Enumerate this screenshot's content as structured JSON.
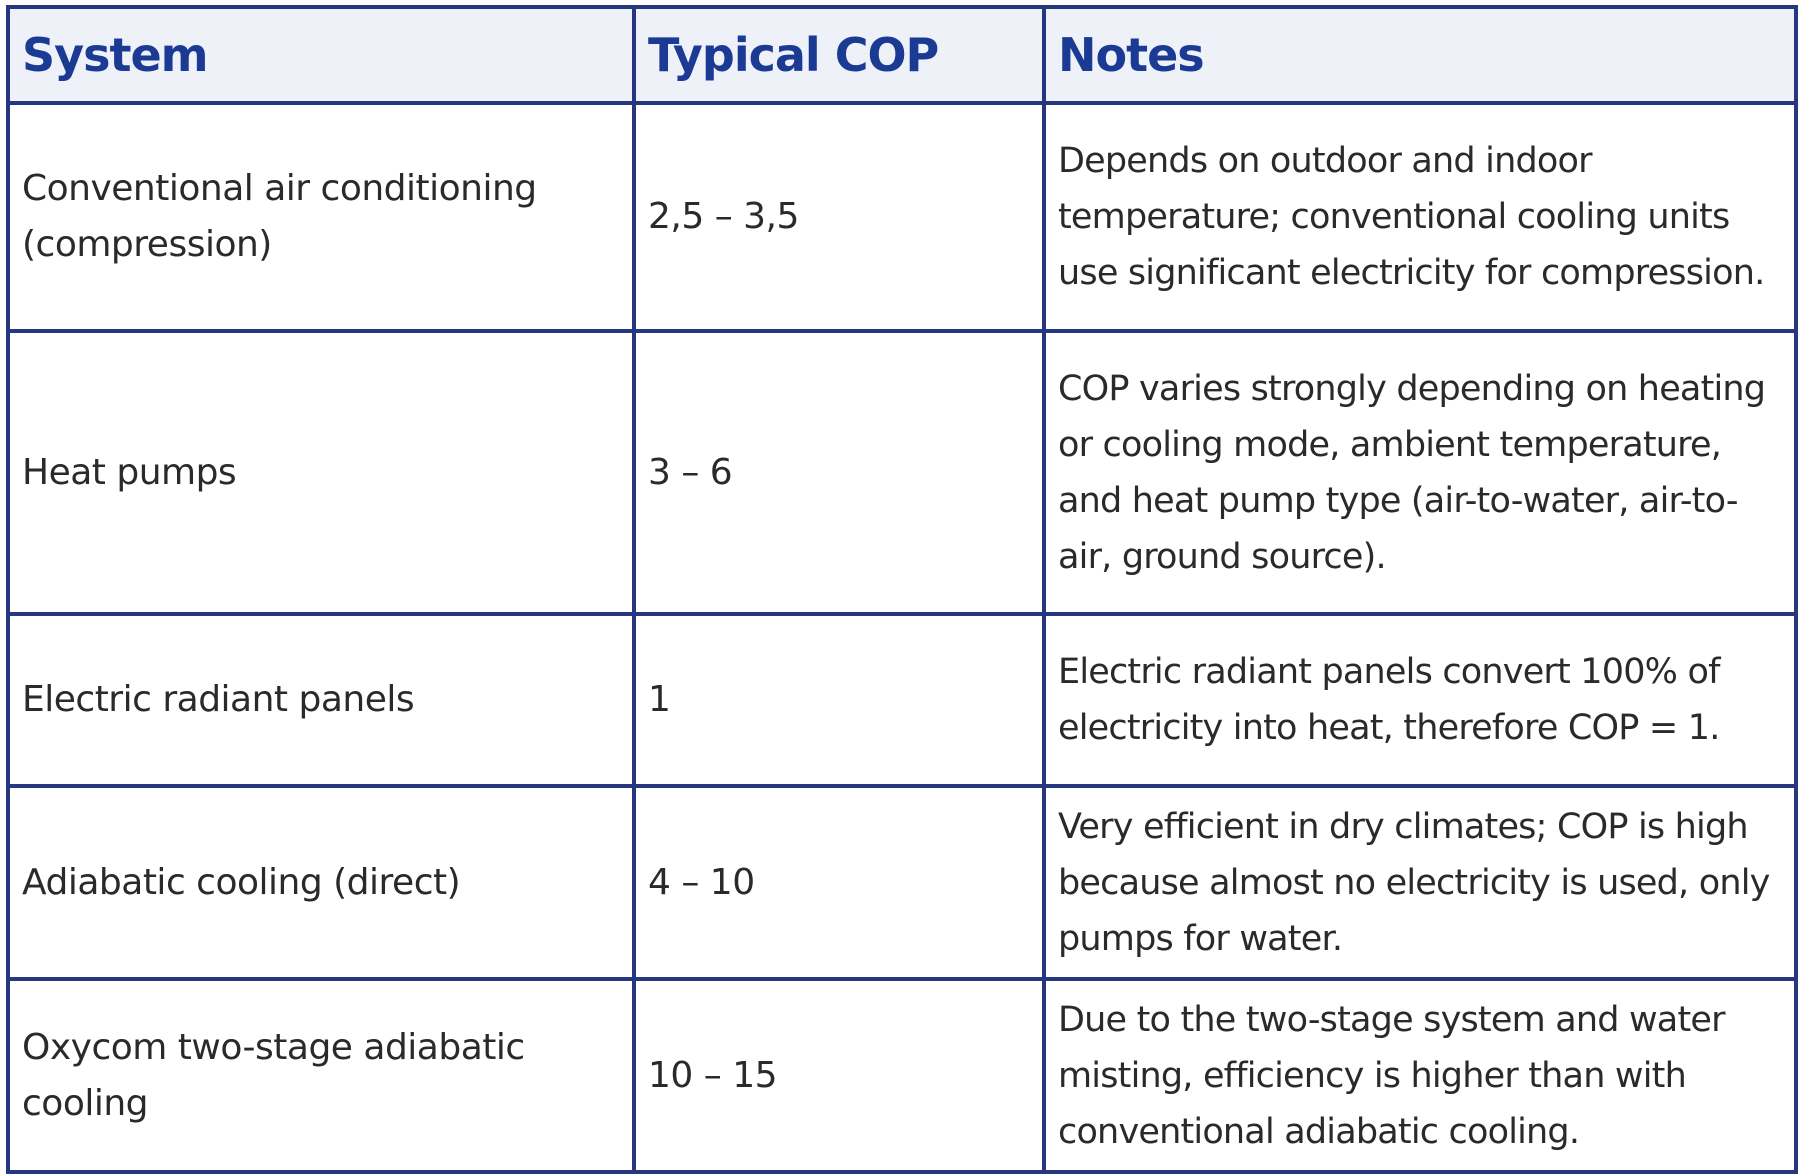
{
  "table": {
    "headers": {
      "system": "System",
      "cop": "Typical COP",
      "notes": "Notes"
    },
    "rows": [
      {
        "system": "Conventional air conditioning (compression)",
        "cop": "2,5 – 3,5",
        "notes": "Depends on outdoor and indoor temperature; conventional cooling units use significant electricity for compression."
      },
      {
        "system": "Heat pumps",
        "cop": "3 – 6",
        "notes": "COP varies strongly depending on heating or cooling mode, ambient temperature, and heat pump type (air-to-water, air-to-air, ground source)."
      },
      {
        "system": "Electric radiant panels",
        "cop": "1",
        "notes": "Electric radiant panels convert 100% of electricity into heat, therefore COP = 1."
      },
      {
        "system": "Adiabatic cooling (direct)",
        "cop": "4 – 10",
        "notes": "Very efficient in dry climates; COP is high because almost no electricity is used, only pumps for water."
      },
      {
        "system": "Oxycom two-stage adiabatic cooling",
        "cop": "10 – 15",
        "notes": "Due to the two-stage system and water misting, efficiency is higher than with conventional adiabatic cooling."
      }
    ]
  }
}
